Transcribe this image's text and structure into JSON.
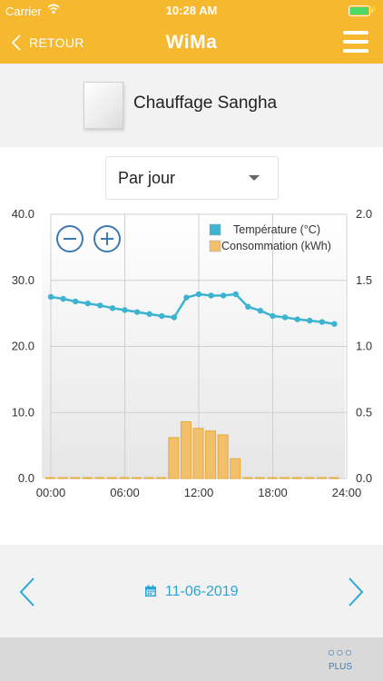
{
  "status_bar": {
    "carrier": "Carrier",
    "time": "10:28 AM"
  },
  "nav": {
    "back_label": "RETOUR",
    "title": "WiMa"
  },
  "device": {
    "name": "Chauffage Sangha"
  },
  "period_select": {
    "value": "Par jour"
  },
  "legend": {
    "temperature": "Température (°C)",
    "consumption": "Consommation (kWh)"
  },
  "colors": {
    "accent": "#f5b82e",
    "temperature": "#3cb3d1",
    "consumption": "#f2c06b",
    "link": "#29a7d6"
  },
  "chart_data": {
    "type": "line",
    "x": [
      "00:00",
      "01:00",
      "02:00",
      "03:00",
      "04:00",
      "05:00",
      "06:00",
      "07:00",
      "08:00",
      "09:00",
      "10:00",
      "11:00",
      "12:00",
      "13:00",
      "14:00",
      "15:00",
      "16:00",
      "17:00",
      "18:00",
      "19:00",
      "20:00",
      "21:00",
      "22:00",
      "23:00"
    ],
    "xticks": [
      "00:00",
      "06:00",
      "12:00",
      "18:00",
      "24:00"
    ],
    "y_left_ticks": [
      "0.0",
      "10.0",
      "20.0",
      "30.0",
      "40.0"
    ],
    "y_right_ticks": [
      "0.0",
      "0.5",
      "1.0",
      "1.5",
      "2.0"
    ],
    "y_left_range": [
      0,
      40
    ],
    "y_right_range": [
      0,
      2
    ],
    "series": [
      {
        "name": "Température (°C)",
        "axis": "left",
        "type": "line",
        "values": [
          27.5,
          27.2,
          26.8,
          26.5,
          26.2,
          25.8,
          25.5,
          25.2,
          24.9,
          24.6,
          24.4,
          27.4,
          27.9,
          27.7,
          27.7,
          27.9,
          26.0,
          25.4,
          24.6,
          24.4,
          24.1,
          23.9,
          23.7,
          23.4
        ]
      },
      {
        "name": "Consommation (kWh)",
        "axis": "right",
        "type": "bar",
        "values": [
          0,
          0,
          0,
          0,
          0,
          0,
          0,
          0,
          0,
          0,
          0.31,
          0.43,
          0.38,
          0.36,
          0.33,
          0.15,
          0,
          0,
          0,
          0,
          0,
          0,
          0,
          0
        ]
      }
    ],
    "grid": true,
    "legend_position": "top-right"
  },
  "date_nav": {
    "date": "11-06-2019"
  },
  "bottom": {
    "more_label": "PLUS"
  }
}
